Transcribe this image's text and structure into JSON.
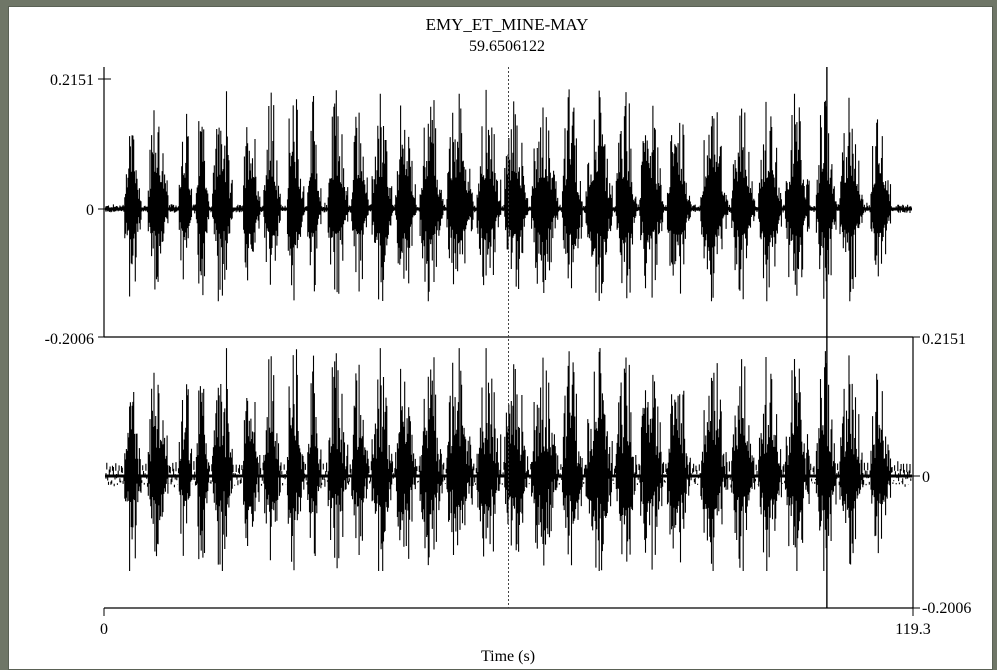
{
  "window": {
    "title": "EMY_ET_MINE-MAY",
    "cursor_time_readout": "59.6506122"
  },
  "chart_data": {
    "type": "line",
    "title": "EMY_ET_MINE-MAY",
    "xlabel": "Time (s)",
    "ylabel": "",
    "xlim": [
      0,
      119.3
    ],
    "x_tick_labels": [
      "0",
      "119.3"
    ],
    "grid": false,
    "cursor": {
      "time": 59.6506122,
      "style": "dotted"
    },
    "selection_marker": {
      "time": 106.6,
      "style": "solid"
    },
    "channels": [
      {
        "ylim": [
          -0.2006,
          0.2151
        ],
        "y_tick_labels": [
          "0.2151",
          "0",
          "-0.2006"
        ],
        "y_axis_side": "left"
      },
      {
        "ylim": [
          -0.2006,
          0.2151
        ],
        "y_tick_labels": [
          "0.2151",
          "0",
          "-0.2006"
        ],
        "y_axis_side": "right"
      }
    ],
    "burst_segments_s": [
      [
        3.0,
        5.5
      ],
      [
        6.5,
        9.5
      ],
      [
        11.0,
        13.0
      ],
      [
        13.5,
        15.5
      ],
      [
        16.0,
        19.0
      ],
      [
        20.5,
        23.0
      ],
      [
        23.5,
        26.0
      ],
      [
        27.0,
        29.5
      ],
      [
        30.0,
        32.0
      ],
      [
        33.0,
        36.0
      ],
      [
        36.5,
        39.0
      ],
      [
        39.5,
        42.5
      ],
      [
        43.0,
        46.0
      ],
      [
        46.5,
        50.0
      ],
      [
        50.5,
        54.5
      ],
      [
        55.0,
        58.5
      ],
      [
        59.0,
        62.5
      ],
      [
        63.0,
        67.0
      ],
      [
        67.5,
        70.5
      ],
      [
        71.0,
        75.0
      ],
      [
        75.5,
        78.5
      ],
      [
        79.0,
        82.5
      ],
      [
        83.0,
        86.5
      ],
      [
        88.0,
        92.0
      ],
      [
        92.5,
        96.0
      ],
      [
        96.5,
        100.0
      ],
      [
        100.5,
        104.0
      ],
      [
        105.0,
        108.0
      ],
      [
        108.5,
        112.0
      ],
      [
        113.0,
        116.0
      ]
    ],
    "envelope_colors": {
      "signal": "#000000",
      "axes": "#000000"
    }
  }
}
